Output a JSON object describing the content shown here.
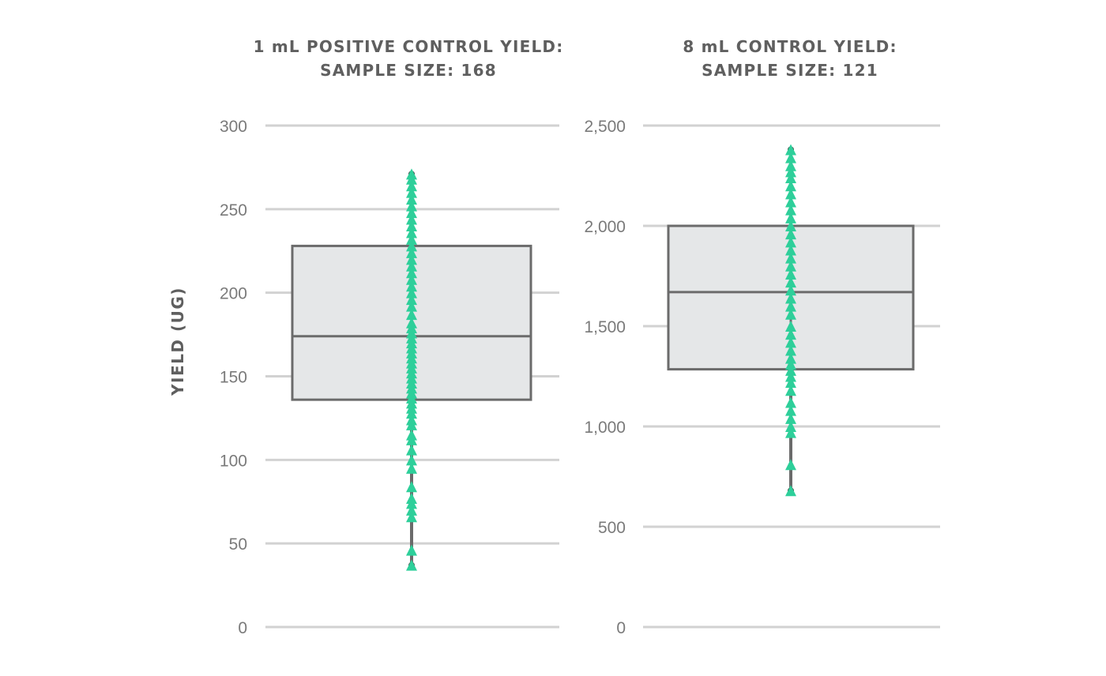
{
  "colors": {
    "point": "#2ecf9a",
    "box_fill": "#e5e7e8",
    "box_stroke": "#6b6b6b",
    "grid": "#d2d2d2"
  },
  "chart_data": [
    {
      "type": "box",
      "title_lines": [
        "1 mL POSITIVE CONTROL YIELD:",
        "SAMPLE SIZE: 168"
      ],
      "ylabel": "YIELD (UG)",
      "ylim": [
        0,
        300
      ],
      "y_ticks": [
        0,
        50,
        100,
        150,
        200,
        250,
        300
      ],
      "y_tick_labels": [
        "0",
        "50",
        "100",
        "150",
        "200",
        "250",
        "300"
      ],
      "box": {
        "min": 37,
        "q1": 136,
        "median": 174,
        "q3": 228,
        "max": 271
      },
      "points": [
        37,
        46,
        66,
        70,
        74,
        77,
        84,
        95,
        100,
        106,
        112,
        115,
        121,
        124,
        128,
        131,
        134,
        137,
        140,
        143,
        146,
        149,
        152,
        155,
        158,
        161,
        164,
        167,
        170,
        173,
        176,
        179,
        182,
        187,
        192,
        196,
        200,
        204,
        208,
        212,
        216,
        220,
        224,
        228,
        232,
        236,
        240,
        244,
        248,
        252,
        256,
        260,
        264,
        268,
        271
      ]
    },
    {
      "type": "box",
      "title_lines": [
        "8 mL CONTROL YIELD:",
        "SAMPLE SIZE: 121"
      ],
      "ylabel": "",
      "ylim": [
        0,
        2500
      ],
      "y_ticks": [
        0,
        500,
        1000,
        1500,
        2000,
        2500
      ],
      "y_tick_labels": [
        "0",
        "500",
        "1,000",
        "1,500",
        "2,000",
        "2,500"
      ],
      "box": {
        "min": 680,
        "q1": 1285,
        "median": 1670,
        "q3": 2000,
        "max": 2380
      },
      "points": [
        680,
        810,
        970,
        1000,
        1040,
        1080,
        1120,
        1180,
        1220,
        1250,
        1280,
        1310,
        1340,
        1380,
        1420,
        1460,
        1500,
        1560,
        1600,
        1640,
        1680,
        1720,
        1760,
        1800,
        1840,
        1880,
        1920,
        1960,
        2000,
        2040,
        2080,
        2120,
        2160,
        2200,
        2240,
        2270,
        2300,
        2340,
        2380
      ]
    }
  ]
}
